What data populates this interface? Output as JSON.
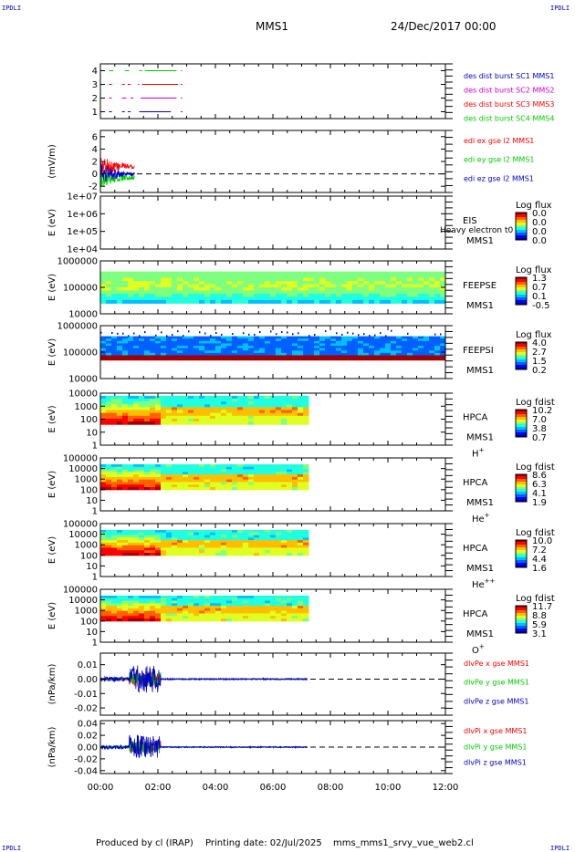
{
  "corner_label": "IPDLI",
  "header": {
    "title": "MMS1",
    "date": "24/Dec/2017 00:00"
  },
  "footer": {
    "produced": "Produced by cl (IRAP)",
    "printing": "Printing date: 02/Jul/2025",
    "script": "mms_mms1_srvy_vue_web2.cl"
  },
  "colors": {
    "red": "#ff0000",
    "green": "#00cc00",
    "blue": "#0000cc",
    "magenta": "#cc00cc",
    "axis": "#000000"
  },
  "chart_data": {
    "type": "multi-panel",
    "x": {
      "range_hours": [
        0,
        12
      ],
      "tick_labels": [
        "00:00",
        "02:00",
        "04:00",
        "06:00",
        "08:00",
        "10:00",
        "12:00"
      ]
    },
    "panels": [
      {
        "id": "des",
        "type": "line",
        "ylabel": "",
        "ylim": [
          0.5,
          4.5
        ],
        "tick_labels": [
          "4",
          "3",
          "2",
          "1"
        ],
        "legend": [
          {
            "label": "des dist burst SC1 MMS1",
            "color": "#0000cc"
          },
          {
            "label": "des dist burst SC2 MMS2",
            "color": "#cc00cc"
          },
          {
            "label": "des dist burst SC3 MMS3",
            "color": "#ff0000"
          },
          {
            "label": "des dist burst SC4 MMS4",
            "color": "#00cc00"
          }
        ],
        "series": [
          {
            "level": 4,
            "color": "#00cc00",
            "segments": [
              [
                0.3,
                0.45
              ],
              [
                0.85,
                1.0
              ],
              [
                1.35,
                1.45
              ],
              [
                1.55,
                2.65
              ],
              [
                2.8,
                2.85
              ]
            ]
          },
          {
            "level": 3,
            "color": "#ff0000",
            "segments": [
              [
                0.3,
                0.4
              ],
              [
                0.75,
                0.85
              ],
              [
                0.95,
                1.05
              ],
              [
                1.3,
                1.35
              ],
              [
                1.45,
                2.7
              ],
              [
                2.8,
                2.85
              ]
            ]
          },
          {
            "level": 2,
            "color": "#cc00cc",
            "segments": [
              [
                0.3,
                0.4
              ],
              [
                0.75,
                0.9
              ],
              [
                1.05,
                1.15
              ],
              [
                1.4,
                2.65
              ],
              [
                2.8,
                2.85
              ]
            ]
          },
          {
            "level": 1,
            "color": "#0000cc",
            "segments": [
              [
                0.3,
                0.4
              ],
              [
                0.75,
                0.85
              ],
              [
                0.95,
                1.05
              ],
              [
                1.35,
                2.45
              ],
              [
                2.8,
                2.85
              ]
            ]
          }
        ]
      },
      {
        "id": "edi",
        "type": "line",
        "ylabel": "(mV/m)",
        "ylim": [
          -3,
          7
        ],
        "tick_labels": [
          "6",
          "4",
          "2",
          "0",
          "-2"
        ],
        "legend": [
          {
            "label": "edi ex gse l2 MMS1",
            "color": "#ff0000"
          },
          {
            "label": "edi ey gse l2 MMS1",
            "color": "#00cc00"
          },
          {
            "label": "edi ez gse l2 MMS1",
            "color": "#0000cc"
          }
        ],
        "dashed_zero": true,
        "data_extent_hours": [
          0,
          1.2
        ]
      },
      {
        "id": "eis",
        "type": "heatmap",
        "ylabel": "E (eV)",
        "tick_labels": [
          "1e+07",
          "1e+06",
          "1e+05",
          "1e+04"
        ],
        "instrument": "EIS",
        "species": "Heavy electron t0",
        "spacecraft": "MMS1",
        "colorbar_title": "Log flux",
        "colorbar_ticks": [
          "0.0",
          "0.0",
          "0.0",
          "0.0"
        ],
        "data_extent_hours": []
      },
      {
        "id": "feeps_e",
        "type": "heatmap",
        "ylabel": "E (eV)",
        "tick_labels": [
          "1000000",
          "100000",
          "10000"
        ],
        "instrument": "FEEPSE",
        "spacecraft": "MMS1",
        "colorbar_title": "Log flux",
        "colorbar_ticks": [
          "1.3",
          "0.7",
          "0.1",
          "-0.5"
        ],
        "data_extent_hours": [
          0,
          12
        ]
      },
      {
        "id": "feeps_i",
        "type": "heatmap",
        "ylabel": "E (eV)",
        "tick_labels": [
          "1000000",
          "100000",
          "10000"
        ],
        "instrument": "FEEPSI",
        "spacecraft": "MMS1",
        "colorbar_title": "Log flux",
        "colorbar_ticks": [
          "4.0",
          "2.7",
          "1.5",
          "0.2"
        ],
        "data_extent_hours": [
          0,
          12
        ]
      },
      {
        "id": "hpca_h",
        "type": "heatmap",
        "ylabel": "E (eV)",
        "tick_labels": [
          "10000",
          "1000",
          "100",
          "10",
          "1"
        ],
        "instrument": "HPCA",
        "spacecraft": "MMS1",
        "species_base": "H",
        "species_sup": "+",
        "colorbar_title": "Log fdist",
        "colorbar_ticks": [
          "10.2",
          "7.0",
          "3.8",
          "0.7"
        ],
        "data_extent_hours": [
          0,
          7.2
        ]
      },
      {
        "id": "hpca_he",
        "type": "heatmap",
        "ylabel": "E (eV)",
        "tick_labels": [
          "100000",
          "10000",
          "1000",
          "100",
          "10",
          "1"
        ],
        "instrument": "HPCA",
        "spacecraft": "MMS1",
        "species_base": "He",
        "species_sup": "+",
        "colorbar_title": "Log fdist",
        "colorbar_ticks": [
          "8.6",
          "6.3",
          "4.1",
          "1.9"
        ],
        "data_extent_hours": [
          0,
          7.2
        ]
      },
      {
        "id": "hpca_he2",
        "type": "heatmap",
        "ylabel": "E (eV)",
        "tick_labels": [
          "100000",
          "10000",
          "1000",
          "100",
          "10",
          "1"
        ],
        "instrument": "HPCA",
        "spacecraft": "MMS1",
        "species_base": "He",
        "species_sup": "++",
        "colorbar_title": "Log fdist",
        "colorbar_ticks": [
          "10.0",
          "7.2",
          "4.4",
          "1.6"
        ],
        "data_extent_hours": [
          0,
          7.2
        ]
      },
      {
        "id": "hpca_o",
        "type": "heatmap",
        "ylabel": "E (eV)",
        "tick_labels": [
          "100000",
          "10000",
          "1000",
          "100",
          "10",
          "1"
        ],
        "instrument": "HPCA",
        "spacecraft": "MMS1",
        "species_base": "O",
        "species_sup": "+",
        "colorbar_title": "Log fdist",
        "colorbar_ticks": [
          "11.7",
          "8.8",
          "5.9",
          "3.1"
        ],
        "data_extent_hours": [
          0,
          7.2
        ]
      },
      {
        "id": "dlvpe",
        "type": "line",
        "ylabel": "(nPa/km)",
        "ylim": [
          -0.025,
          0.018
        ],
        "tick_labels": [
          "0.01",
          "0.00",
          "-0.01",
          "-0.02"
        ],
        "legend": [
          {
            "label": "dlvPe x gse MMS1",
            "color": "#ff0000"
          },
          {
            "label": "dlvPe y gse MMS1",
            "color": "#00cc00"
          },
          {
            "label": "dlvPe z gse MMS1",
            "color": "#0000cc"
          }
        ],
        "dashed_zero": true,
        "data_extent_hours": [
          0,
          7.2
        ]
      },
      {
        "id": "dlvpi",
        "type": "line",
        "ylabel": "(nPa/km)",
        "ylim": [
          -0.045,
          0.045
        ],
        "tick_labels": [
          "0.04",
          "0.02",
          "0.00",
          "-0.02",
          "-0.04"
        ],
        "legend": [
          {
            "label": "dlvPi x gse MMS1",
            "color": "#ff0000"
          },
          {
            "label": "dlvPi y gse MMS1",
            "color": "#00cc00"
          },
          {
            "label": "dlvPi z gse MMS1",
            "color": "#0000cc"
          }
        ],
        "dashed_zero": true,
        "data_extent_hours": [
          0,
          7.2
        ]
      }
    ]
  }
}
